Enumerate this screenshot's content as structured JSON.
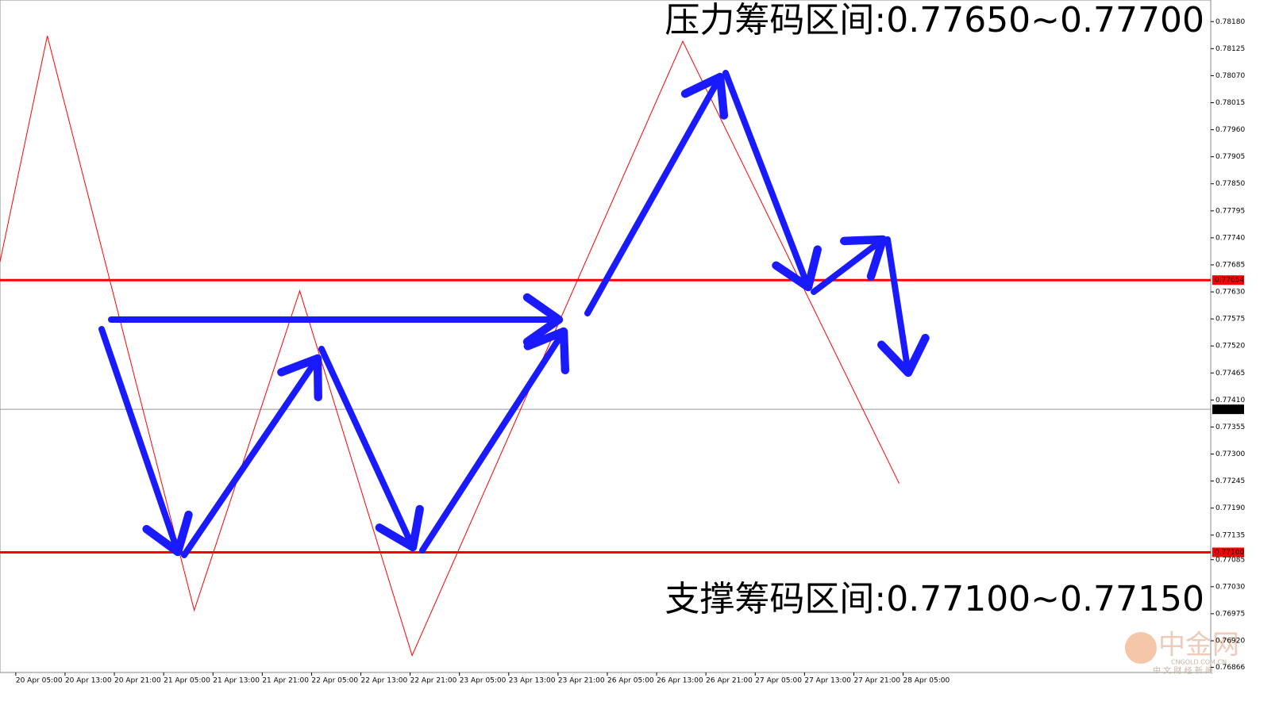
{
  "chart_data": {
    "type": "line",
    "annotations": [
      "压力筹码区间:0.77650~0.77700",
      "支撑筹码区间:0.77100~0.77150"
    ],
    "x": [
      -0.32,
      0.64,
      3.62,
      5.76,
      8.04,
      13.53,
      17.92
    ],
    "values": [
      0.77691,
      0.78151,
      0.76982,
      0.77632,
      0.7689,
      0.7814,
      0.7724
    ],
    "color": "#ff0000",
    "xlim": [
      -0.32,
      24.24
    ],
    "xticks": [
      {
        "value": 0,
        "label": "20 Apr 05:00"
      },
      {
        "value": 1,
        "label": "20 Apr 13:00"
      },
      {
        "value": 2,
        "label": "20 Apr 21:00"
      },
      {
        "value": 3,
        "label": "21 Apr 05:00"
      },
      {
        "value": 4,
        "label": "21 Apr 13:00"
      },
      {
        "value": 5,
        "label": "21 Apr 21:00"
      },
      {
        "value": 6,
        "label": "22 Apr 05:00"
      },
      {
        "value": 7,
        "label": "22 Apr 13:00"
      },
      {
        "value": 8,
        "label": "22 Apr 21:00"
      },
      {
        "value": 9,
        "label": "23 Apr 05:00"
      },
      {
        "value": 10,
        "label": "23 Apr 13:00"
      },
      {
        "value": 11,
        "label": "23 Apr 21:00"
      },
      {
        "value": 12,
        "label": "26 Apr 05:00"
      },
      {
        "value": 13,
        "label": "26 Apr 13:00"
      },
      {
        "value": 14,
        "label": "26 Apr 21:00"
      },
      {
        "value": 15,
        "label": "27 Apr 05:00"
      },
      {
        "value": 16,
        "label": "27 Apr 13:00"
      },
      {
        "value": 17,
        "label": "27 Apr 21:00"
      },
      {
        "value": 18,
        "label": "28 Apr 05:00"
      }
    ],
    "ylim": [
      0.76828,
      0.78224
    ],
    "yticks": [
      {
        "value": 0.7818,
        "label": "0.78180"
      },
      {
        "value": 0.78125,
        "label": "0.78125"
      },
      {
        "value": 0.7807,
        "label": "0.78070"
      },
      {
        "value": 0.78015,
        "label": "0.78015"
      },
      {
        "value": 0.7796,
        "label": "0.77960"
      },
      {
        "value": 0.77905,
        "label": "0.77905"
      },
      {
        "value": 0.7785,
        "label": "0.77850"
      },
      {
        "value": 0.77795,
        "label": "0.77795"
      },
      {
        "value": 0.7774,
        "label": "0.77740"
      },
      {
        "value": 0.77685,
        "label": "0.77685"
      },
      {
        "value": 0.7763,
        "label": "0.77630"
      },
      {
        "value": 0.77575,
        "label": "0.77575"
      },
      {
        "value": 0.7752,
        "label": "0.77520"
      },
      {
        "value": 0.77465,
        "label": "0.77465"
      },
      {
        "value": 0.7741,
        "label": "0.77410"
      },
      {
        "value": 0.77355,
        "label": "0.77355"
      },
      {
        "value": 0.773,
        "label": "0.77300"
      },
      {
        "value": 0.77245,
        "label": "0.77245"
      },
      {
        "value": 0.7719,
        "label": "0.77190"
      },
      {
        "value": 0.77135,
        "label": "0.77135"
      },
      {
        "value": 0.77085,
        "label": "0.77085"
      },
      {
        "value": 0.7703,
        "label": "0.77030"
      },
      {
        "value": 0.76975,
        "label": "0.76975"
      },
      {
        "value": 0.7692,
        "label": "0.76920"
      },
      {
        "value": 0.76866,
        "label": "0.76866"
      }
    ],
    "hlines": [
      {
        "value": 0.77654,
        "color": "#ff0000"
      },
      {
        "value": 0.77391,
        "color": "#000000"
      },
      {
        "value": 0.771,
        "label": "0.77100",
        "color": "#ff0000"
      }
    ]
  },
  "watermark": {
    "logo": "中金网",
    "site": "CNGOLD.COM.CN",
    "slogan": "中 文 财 经 新 闻"
  }
}
